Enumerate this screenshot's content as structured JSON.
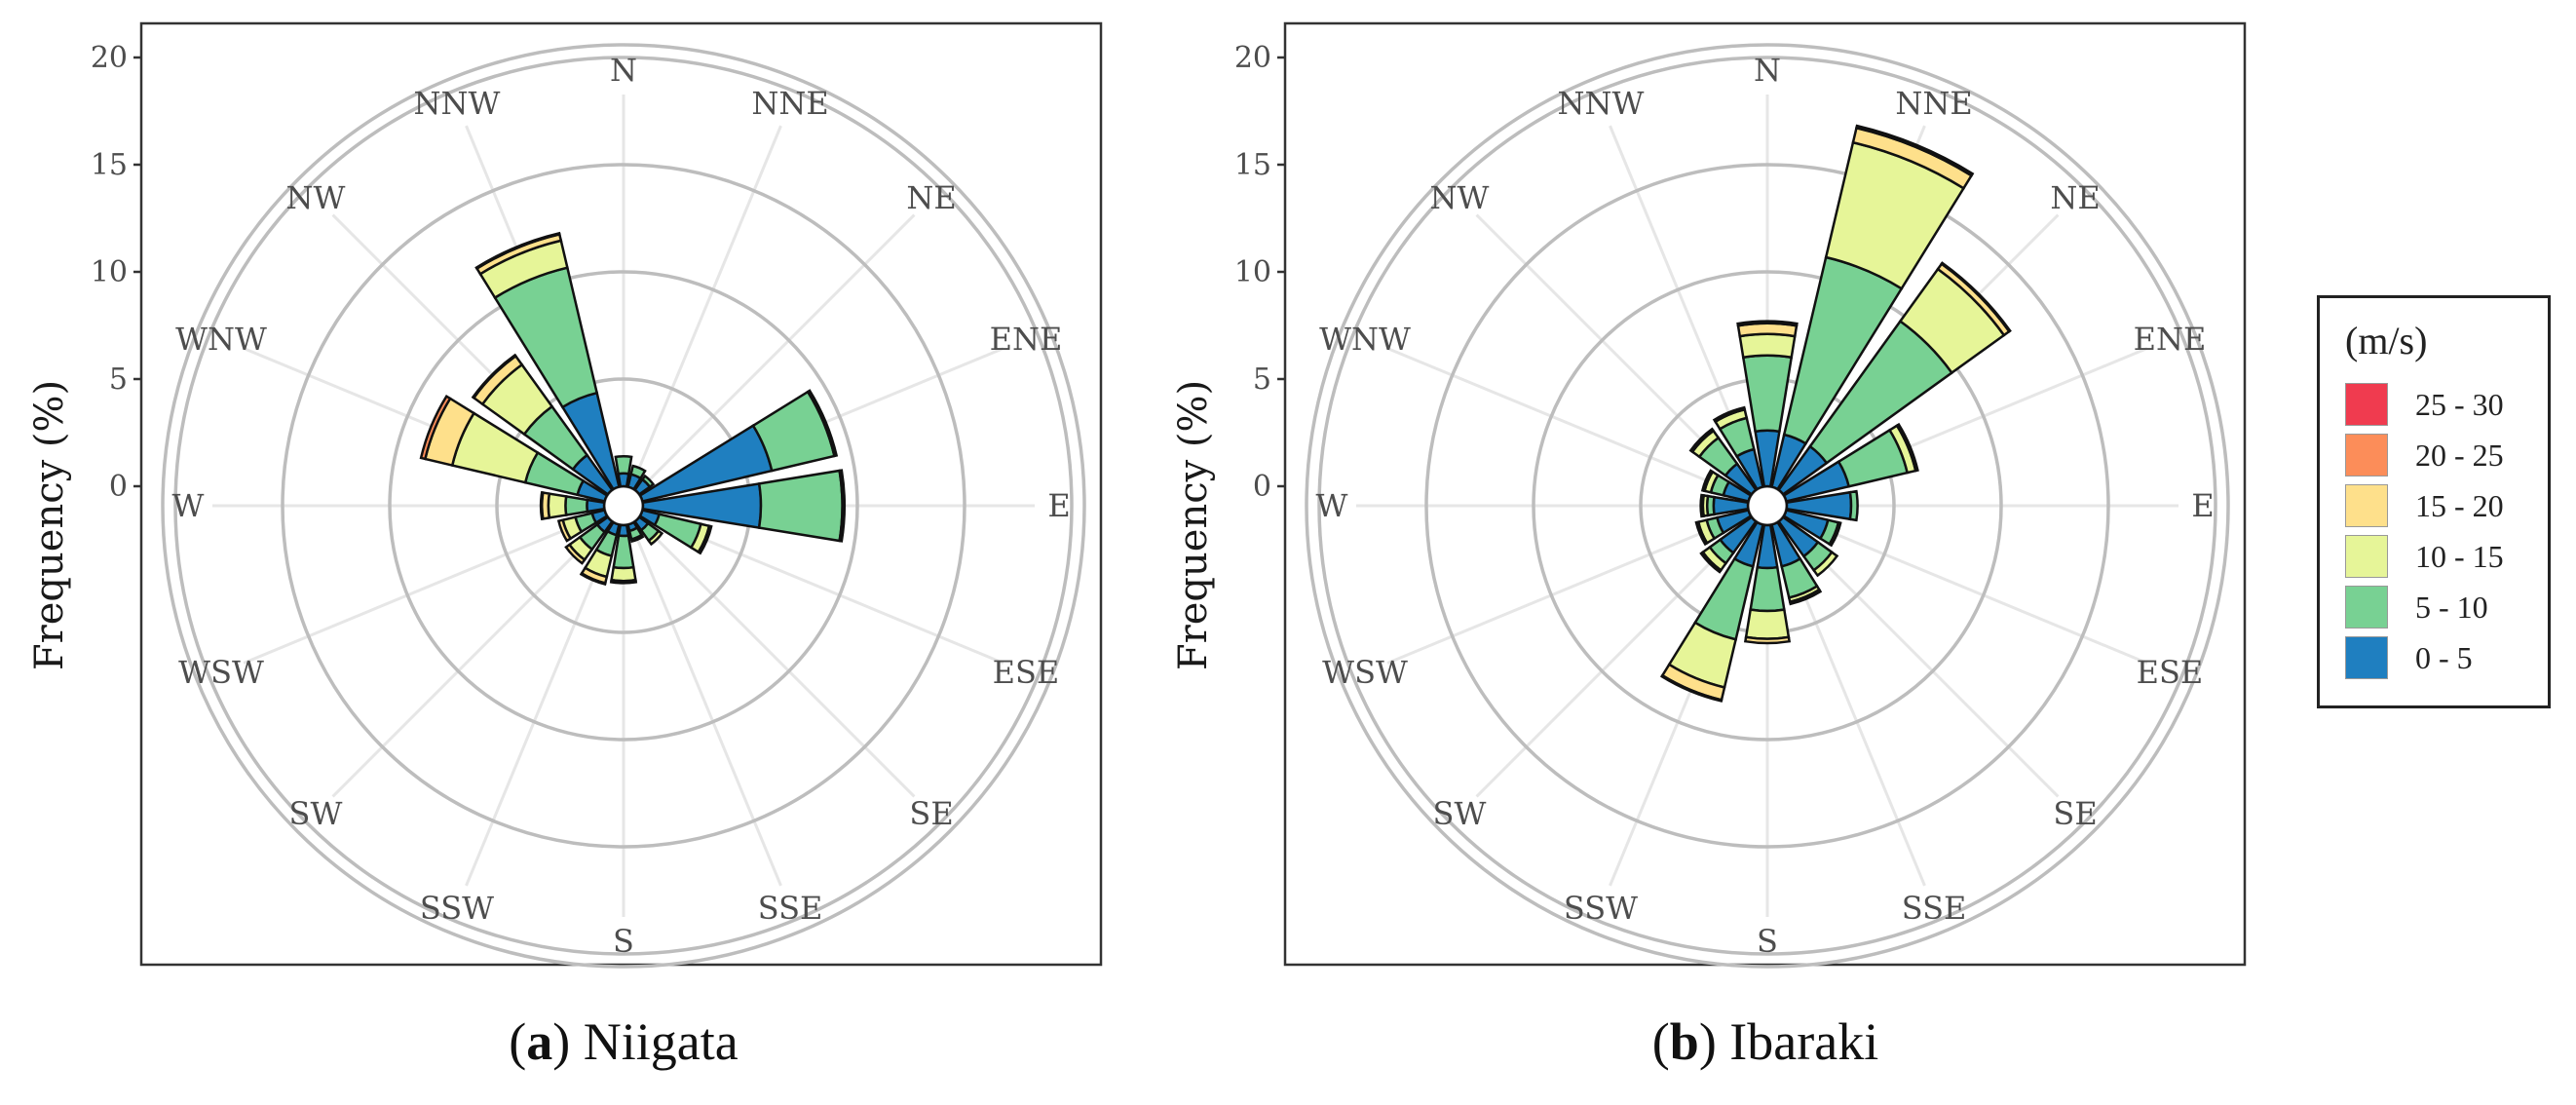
{
  "chart_data": [
    {
      "type": "wind-rose",
      "panel_label": "a",
      "title": "Niigata",
      "ylabel": "Frequency (%)",
      "ylim": [
        0,
        20
      ],
      "yticks": [
        0,
        5,
        10,
        15,
        20
      ],
      "directions": [
        "N",
        "NNE",
        "NE",
        "ENE",
        "E",
        "ESE",
        "SE",
        "SSE",
        "S",
        "SSW",
        "SW",
        "WSW",
        "W",
        "WNW",
        "NW",
        "NNW"
      ],
      "speed_bins": [
        "0 - 5",
        "5 - 10",
        "10 - 15",
        "15 - 20",
        "20 - 25",
        "25 - 30"
      ],
      "series": [
        {
          "name": "0 - 5",
          "values": [
            0.6,
            0.6,
            0.6,
            6.2,
            5.5,
            0.8,
            0.5,
            0.3,
            0.5,
            0.5,
            0.6,
            0.6,
            0.8,
            1.3,
            2.0,
            4.5
          ]
        },
        {
          "name": "5 - 10",
          "values": [
            0.8,
            0.4,
            0.2,
            3.0,
            3.8,
            2.0,
            0.6,
            0.4,
            1.5,
            1.0,
            1.0,
            0.8,
            1.0,
            2.5,
            2.8,
            6.0
          ]
        },
        {
          "name": "10 - 15",
          "values": [
            0.0,
            0.0,
            0.0,
            0.1,
            0.1,
            0.4,
            0.2,
            0.1,
            0.6,
            1.0,
            0.6,
            0.6,
            0.8,
            3.5,
            2.4,
            1.3
          ]
        },
        {
          "name": "15 - 20",
          "values": [
            0.0,
            0.0,
            0.0,
            0.0,
            0.0,
            0.1,
            0.0,
            0.0,
            0.1,
            0.3,
            0.2,
            0.2,
            0.3,
            1.3,
            0.5,
            0.3
          ]
        },
        {
          "name": "20 - 25",
          "values": [
            0,
            0,
            0,
            0,
            0,
            0,
            0,
            0,
            0,
            0.05,
            0,
            0,
            0.05,
            0.2,
            0.05,
            0.05
          ]
        },
        {
          "name": "25 - 30",
          "values": [
            0,
            0,
            0,
            0,
            0,
            0,
            0,
            0,
            0,
            0,
            0,
            0,
            0,
            0,
            0,
            0
          ]
        }
      ]
    },
    {
      "type": "wind-rose",
      "panel_label": "b",
      "title": "Ibaraki",
      "ylabel": "Frequency (%)",
      "ylim": [
        0,
        20
      ],
      "yticks": [
        0,
        5,
        10,
        15,
        20
      ],
      "directions": [
        "N",
        "NNE",
        "NE",
        "ENE",
        "E",
        "ESE",
        "SE",
        "SSE",
        "S",
        "SSW",
        "SW",
        "WSW",
        "W",
        "WNW",
        "NW",
        "NNW"
      ],
      "speed_bins": [
        "0 - 5",
        "5 - 10",
        "10 - 15",
        "15 - 20",
        "20 - 25",
        "25 - 30"
      ],
      "series": [
        {
          "name": "0 - 5",
          "values": [
            2.6,
            2.5,
            2.5,
            3.0,
            3.0,
            2.0,
            2.0,
            2.0,
            2.0,
            2.0,
            1.8,
            1.5,
            1.6,
            1.2,
            1.5,
            1.8
          ]
        },
        {
          "name": "5 - 10",
          "values": [
            3.5,
            8.5,
            7.2,
            2.8,
            0.3,
            0.5,
            0.8,
            1.5,
            2.0,
            3.5,
            0.6,
            0.5,
            0.3,
            0.6,
            1.5,
            1.5
          ]
        },
        {
          "name": "10 - 15",
          "values": [
            1.0,
            5.5,
            3.0,
            0.4,
            0.0,
            0.1,
            0.3,
            0.2,
            1.3,
            2.3,
            0.4,
            0.4,
            0.2,
            0.3,
            0.4,
            0.4
          ]
        },
        {
          "name": "15 - 20",
          "values": [
            0.5,
            0.7,
            0.3,
            0.1,
            0.0,
            0.0,
            0.0,
            0.1,
            0.2,
            0.6,
            0.1,
            0.1,
            0.1,
            0.1,
            0.1,
            0.1
          ]
        },
        {
          "name": "20 - 25",
          "values": [
            0.1,
            0.1,
            0.05,
            0,
            0,
            0,
            0,
            0,
            0,
            0.05,
            0,
            0,
            0,
            0,
            0,
            0
          ]
        },
        {
          "name": "25 - 30",
          "values": [
            0,
            0,
            0,
            0,
            0,
            0,
            0,
            0,
            0,
            0,
            0,
            0,
            0,
            0,
            0,
            0
          ]
        }
      ]
    }
  ],
  "captions": [
    {
      "label": "a",
      "name": "Niigata"
    },
    {
      "label": "b",
      "name": "Ibaraki"
    }
  ],
  "legend": {
    "title": "(m/s)",
    "items": [
      {
        "label": "25 - 30",
        "color": "#f03b4f"
      },
      {
        "label": "20 - 25",
        "color": "#fc8d59"
      },
      {
        "label": "15 - 20",
        "color": "#fee08b"
      },
      {
        "label": "10 - 15",
        "color": "#e6f598"
      },
      {
        "label": "5 - 10",
        "color": "#78d193"
      },
      {
        "label": "0 - 5",
        "color": "#1f7fc0"
      }
    ]
  }
}
